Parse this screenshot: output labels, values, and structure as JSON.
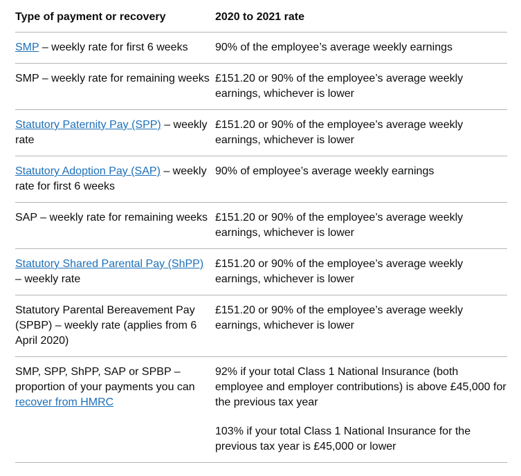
{
  "colors": {
    "text": "#0b0c0c",
    "link": "#1d70b8",
    "border": "#b1b4b6",
    "background": "#ffffff"
  },
  "table": {
    "headers": [
      "Type of payment or recovery",
      "2020 to 2021 rate"
    ],
    "rows": [
      {
        "payment": {
          "link": "SMP",
          "after": " – weekly rate for first 6 weeks"
        },
        "rate": [
          "90% of the employee’s average weekly earnings"
        ]
      },
      {
        "payment": {
          "text": "SMP – weekly rate for remaining weeks"
        },
        "rate": [
          "£151.20 or 90% of the employee’s average weekly earnings, whichever is lower"
        ]
      },
      {
        "payment": {
          "link": "Statutory Paternity Pay (SPP)",
          "after": " – weekly rate"
        },
        "rate": [
          "£151.20 or 90% of the employee’s average weekly earnings, whichever is lower"
        ]
      },
      {
        "payment": {
          "link": "Statutory Adoption Pay (SAP)",
          "after": " – weekly rate for first 6 weeks"
        },
        "rate": [
          "90% of employee’s average weekly earnings"
        ]
      },
      {
        "payment": {
          "text": "SAP – weekly rate for remaining weeks"
        },
        "rate": [
          "£151.20 or 90% of the employee’s average weekly earnings, whichever is lower"
        ]
      },
      {
        "payment": {
          "link": "Statutory Shared Parental Pay (ShPP)",
          "after": " – weekly rate"
        },
        "rate": [
          "£151.20 or 90% of the employee’s average weekly earnings, whichever is lower"
        ]
      },
      {
        "payment": {
          "text": "Statutory Parental Bereavement Pay (SPBP) – weekly rate (applies from 6 April 2020)"
        },
        "rate": [
          "£151.20 or 90% of the employee’s average weekly earnings, whichever is lower"
        ]
      },
      {
        "payment": {
          "before": "SMP, SPP, ShPP, SAP or SPBP – proportion of your payments you can ",
          "link": "recover from HMRC"
        },
        "rate": [
          "92% if your total Class 1 National Insurance (both employee and employer contributions) is above £45,000 for the previous tax year",
          "103% if your total Class 1 National Insurance for the previous tax year is £45,000 or lower"
        ]
      }
    ]
  }
}
